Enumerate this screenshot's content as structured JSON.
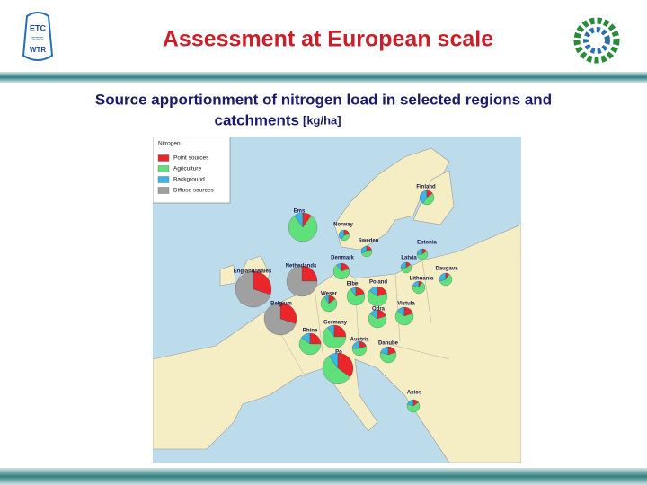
{
  "header": {
    "title": "Assessment at European scale",
    "logo_left": [
      "ETC",
      "WTR"
    ]
  },
  "subtitle": {
    "line1": "Source apportionment of nitrogen load in selected regions and",
    "line2": "catchments",
    "unit": "[kg/ha]"
  },
  "map": {
    "legend_title": "Nitrogen",
    "legend": [
      {
        "name": "Point sources",
        "color": "#e8262b"
      },
      {
        "name": "Agriculture",
        "color": "#5fe07a"
      },
      {
        "name": "Background",
        "color": "#3cb4e6"
      },
      {
        "name": "Diffuse sources",
        "color": "#a0a0a0"
      }
    ],
    "regions": [
      {
        "label": "Finland",
        "shares": [
          15,
          45,
          40,
          0
        ]
      },
      {
        "label": "Ems",
        "shares": [
          10,
          80,
          10,
          0
        ]
      },
      {
        "label": "Norway",
        "shares": [
          20,
          40,
          40,
          0
        ]
      },
      {
        "label": "Sweden",
        "shares": [
          20,
          50,
          30,
          0
        ]
      },
      {
        "label": "Estonia",
        "shares": [
          15,
          60,
          25,
          0
        ]
      },
      {
        "label": "Latvia",
        "shares": [
          15,
          60,
          25,
          0
        ]
      },
      {
        "label": "Daugava",
        "shares": [
          10,
          60,
          30,
          0
        ]
      },
      {
        "label": "Denmark",
        "shares": [
          20,
          70,
          10,
          0
        ]
      },
      {
        "label": "England/Wales",
        "shares": [
          30,
          0,
          0,
          70
        ]
      },
      {
        "label": "Netherlands",
        "shares": [
          25,
          0,
          0,
          75
        ]
      },
      {
        "label": "Lithuania",
        "shares": [
          10,
          70,
          20,
          0
        ]
      },
      {
        "label": "Poland",
        "shares": [
          20,
          65,
          15,
          0
        ]
      },
      {
        "label": "Elbe",
        "shares": [
          20,
          70,
          10,
          0
        ]
      },
      {
        "label": "Weser",
        "shares": [
          15,
          75,
          10,
          0
        ]
      },
      {
        "label": "Belgium",
        "shares": [
          30,
          0,
          0,
          70
        ]
      },
      {
        "label": "Odra",
        "shares": [
          20,
          65,
          15,
          0
        ]
      },
      {
        "label": "Vistula",
        "shares": [
          20,
          65,
          15,
          0
        ]
      },
      {
        "label": "Germany",
        "shares": [
          25,
          65,
          10,
          0
        ]
      },
      {
        "label": "Rhine",
        "shares": [
          25,
          60,
          15,
          0
        ]
      },
      {
        "label": "Austria",
        "shares": [
          20,
          55,
          25,
          0
        ]
      },
      {
        "label": "Danube",
        "shares": [
          20,
          60,
          20,
          0
        ]
      },
      {
        "label": "Po",
        "shares": [
          35,
          55,
          10,
          0
        ]
      },
      {
        "label": "Axios",
        "shares": [
          15,
          65,
          20,
          0
        ]
      }
    ]
  }
}
